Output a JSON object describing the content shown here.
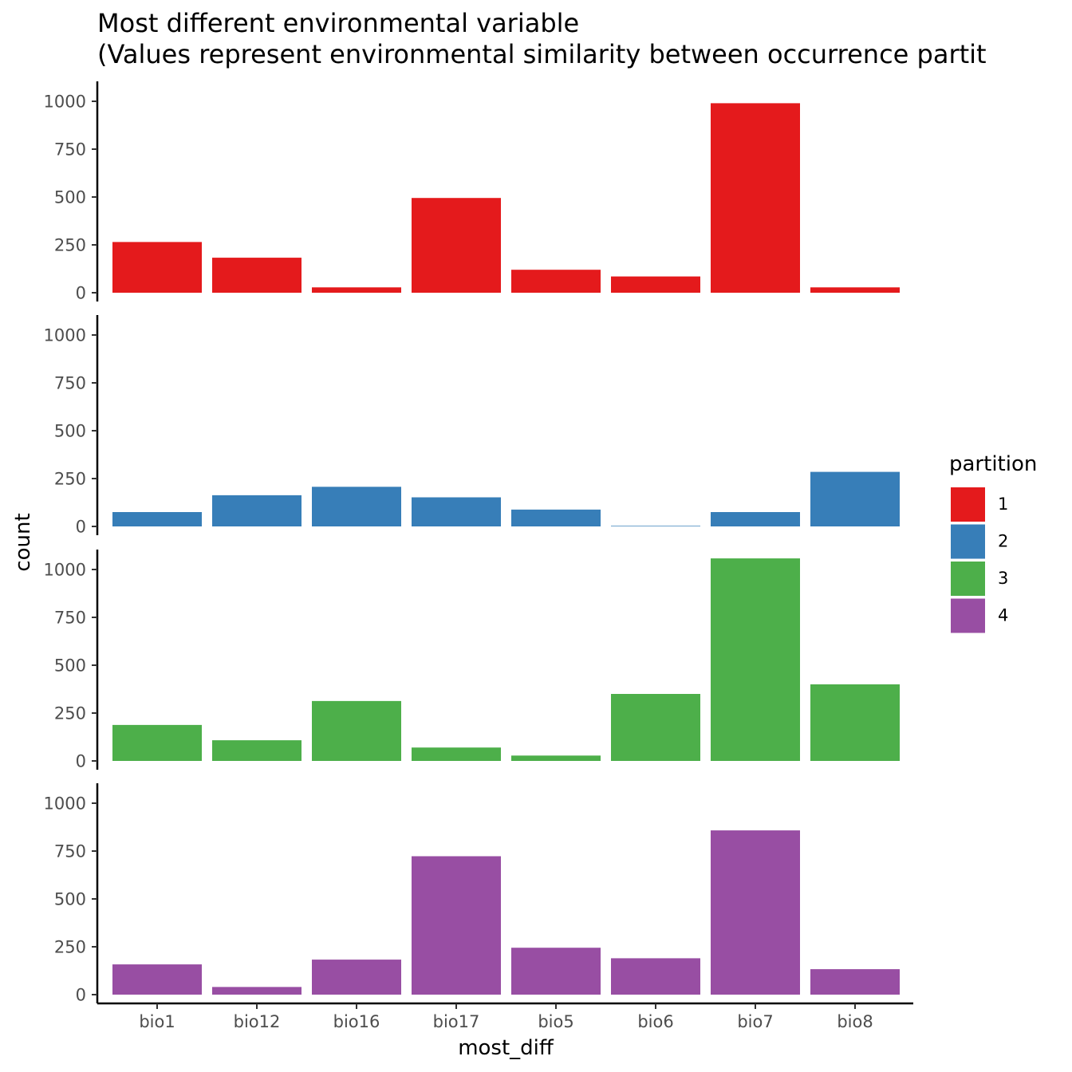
{
  "chart_data": {
    "type": "bar",
    "title": "Most different environmental variable",
    "subtitle": "(Values represent environmental similarity between occurrence partit",
    "xlabel": "most_diff",
    "ylabel": "count",
    "categories": [
      "bio1",
      "bio12",
      "bio16",
      "bio17",
      "bio5",
      "bio6",
      "bio7",
      "bio8"
    ],
    "ylim": [
      0,
      1100
    ],
    "yticks": [
      0,
      250,
      500,
      750,
      1000
    ],
    "grid": false,
    "legend": {
      "title": "partition",
      "position": "right"
    },
    "series": [
      {
        "name": "1",
        "color": "#E41A1C",
        "values": [
          265,
          183,
          28,
          495,
          120,
          85,
          990,
          28
        ]
      },
      {
        "name": "2",
        "color": "#377EB8",
        "values": [
          75,
          163,
          207,
          152,
          88,
          3,
          75,
          285
        ]
      },
      {
        "name": "3",
        "color": "#4DAF4A",
        "values": [
          188,
          108,
          313,
          70,
          28,
          350,
          1058,
          400
        ]
      },
      {
        "name": "4",
        "color": "#984EA3",
        "values": [
          158,
          40,
          183,
          723,
          245,
          190,
          858,
          133
        ]
      }
    ]
  }
}
